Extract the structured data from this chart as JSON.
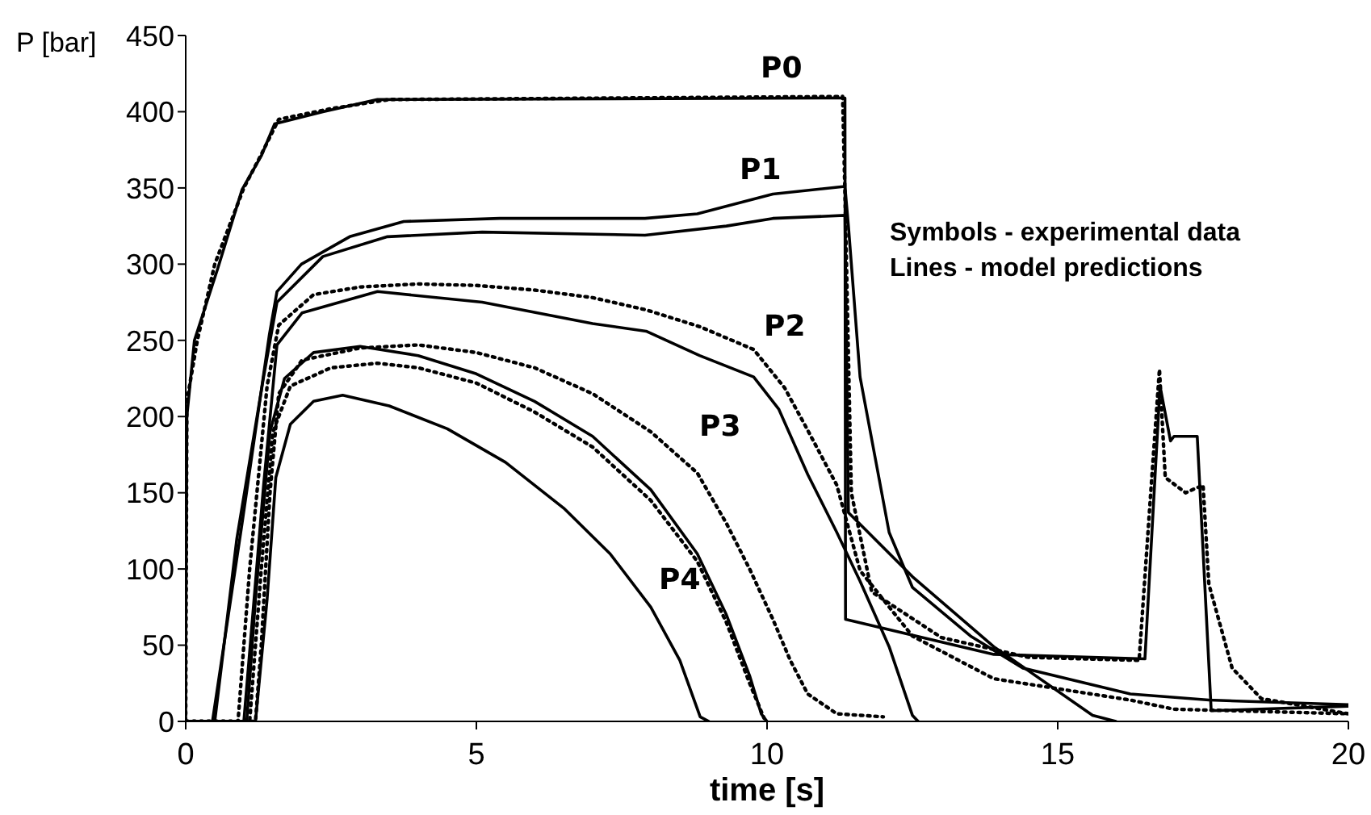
{
  "chart_data": {
    "type": "line",
    "xlabel": "time [s]",
    "ylabel": "P [bar]",
    "xlim": [
      0,
      20
    ],
    "xticks": [
      0,
      5,
      10,
      15,
      20
    ],
    "ylim": [
      0,
      450
    ],
    "yticks": [
      0,
      50,
      100,
      150,
      200,
      250,
      300,
      350,
      400,
      450
    ],
    "marker": "none",
    "annotations": [
      "P0",
      "P1",
      "P2",
      "P3",
      "P4",
      "Symbols - experimental data",
      "Lines - model predictions"
    ],
    "series": [
      {
        "color": "#000000",
        "line_style": "solid",
        "x": [
          0,
          0,
          0.02,
          0.15,
          0.55,
          0.97,
          1.3,
          1.53,
          2.36,
          3.3,
          11.34,
          11.35,
          13.9,
          16.5,
          16.76,
          16.94,
          17.0,
          17.4,
          17.64,
          20
        ],
        "values": [
          0,
          45,
          200,
          250,
          297,
          349,
          371,
          392,
          400,
          408,
          409,
          67,
          44,
          41,
          220,
          184,
          187,
          187,
          7,
          10
        ]
      },
      {
        "color": "#000000",
        "line_style": "dotted",
        "x": [
          0,
          0.02,
          0.2,
          0.5,
          1,
          1.3,
          1.6,
          2.5,
          3.5,
          11.3,
          11.35,
          11.45,
          11.8,
          13,
          14.5,
          16.4,
          16.6,
          16.75,
          16.85,
          17.2,
          17.5,
          17.6,
          18,
          18.5,
          20
        ],
        "values": [
          0,
          210,
          250,
          300,
          350,
          372,
          395,
          402,
          408,
          410,
          330,
          150,
          85,
          55,
          42,
          40,
          150,
          231,
          160,
          150,
          155,
          90,
          35,
          15,
          5
        ]
      },
      {
        "color": "#000000",
        "line_style": "solid",
        "x": [
          0,
          0.46,
          0.97,
          1.44,
          1.57,
          1.99,
          2.82,
          3.75,
          5.4,
          7.9,
          8.8,
          10.1,
          11.34,
          11.4,
          11.6,
          12.1,
          12.5,
          13.5,
          14.4,
          16.25,
          17.6,
          20
        ],
        "values": [
          0,
          0,
          130,
          254,
          282,
          300,
          318,
          328,
          330,
          330,
          333,
          346,
          351,
          325,
          226,
          124,
          88,
          56,
          35,
          18,
          14,
          11
        ]
      },
      {
        "color": "#000000",
        "line_style": "solid",
        "x": [
          0,
          0.5,
          0.88,
          1.34,
          1.57,
          2.36,
          3.47,
          5.1,
          7.9,
          9.3,
          10.1,
          11.34,
          11.4,
          12.5,
          13.9,
          15.6,
          16
        ],
        "values": [
          0,
          0,
          120,
          226,
          275,
          305,
          318,
          321,
          319,
          325,
          330,
          332,
          137,
          95,
          49,
          4,
          0
        ]
      },
      {
        "color": "#000000",
        "line_style": "dotted",
        "x": [
          0,
          0.9,
          1.1,
          1.4,
          1.6,
          2.2,
          3,
          4,
          5,
          6,
          7,
          7.92,
          8.84,
          9.77,
          10.3,
          10.7,
          11.2,
          11.6,
          12.5,
          13.9,
          16.25,
          17,
          20
        ],
        "values": [
          0,
          0,
          100,
          220,
          260,
          280,
          285,
          287,
          286,
          283,
          278,
          270,
          259,
          244,
          219,
          191,
          155,
          99,
          56,
          28,
          14,
          8,
          5
        ]
      },
      {
        "color": "#000000",
        "line_style": "solid",
        "x": [
          0,
          1.0,
          1.34,
          1.57,
          2,
          3.3,
          5.1,
          7,
          7.92,
          8.84,
          9.77,
          10.2,
          10.7,
          11.2,
          11.6,
          12.1,
          12.5,
          12.6
        ],
        "values": [
          0,
          0,
          155,
          247,
          268,
          282,
          275,
          261,
          256,
          240,
          226,
          205,
          162,
          124,
          92,
          49,
          4,
          0
        ]
      },
      {
        "color": "#000000",
        "line_style": "dotted",
        "x": [
          0,
          1.2,
          1.3,
          1.45,
          1.6,
          2,
          3,
          4,
          5,
          6,
          7,
          8,
          8.8,
          9.3,
          9.7,
          10.1,
          10.4,
          10.7,
          11.2,
          12
        ],
        "values": [
          0,
          0,
          50,
          150,
          215,
          237,
          245,
          247,
          242,
          232,
          215,
          190,
          163,
          130,
          100,
          67,
          40,
          18,
          5,
          3
        ]
      },
      {
        "color": "#000000",
        "line_style": "solid",
        "x": [
          0,
          1.05,
          1.2,
          1.45,
          1.7,
          2.2,
          3,
          4,
          5,
          6,
          7,
          8,
          8.8,
          9.3,
          9.7,
          9.9,
          10
        ],
        "values": [
          0,
          0,
          80,
          190,
          225,
          242,
          246,
          240,
          228,
          210,
          187,
          152,
          110,
          70,
          30,
          5,
          0
        ]
      },
      {
        "color": "#000000",
        "line_style": "dotted",
        "x": [
          0,
          1.1,
          1.3,
          1.5,
          1.8,
          2.5,
          3.3,
          4,
          5,
          6,
          7,
          8,
          8.8,
          9.3,
          9.7,
          9.95
        ],
        "values": [
          0,
          0,
          100,
          190,
          220,
          232,
          235,
          232,
          222,
          203,
          180,
          145,
          105,
          65,
          25,
          2
        ]
      },
      {
        "color": "#000000",
        "line_style": "solid",
        "x": [
          0,
          1.2,
          1.4,
          1.55,
          1.8,
          2.2,
          2.7,
          3.5,
          4.5,
          5.5,
          6.5,
          7.3,
          8,
          8.5,
          8.85,
          9
        ],
        "values": [
          0,
          0,
          80,
          160,
          195,
          210,
          214,
          207,
          192,
          170,
          140,
          110,
          75,
          40,
          3,
          0
        ]
      }
    ]
  }
}
